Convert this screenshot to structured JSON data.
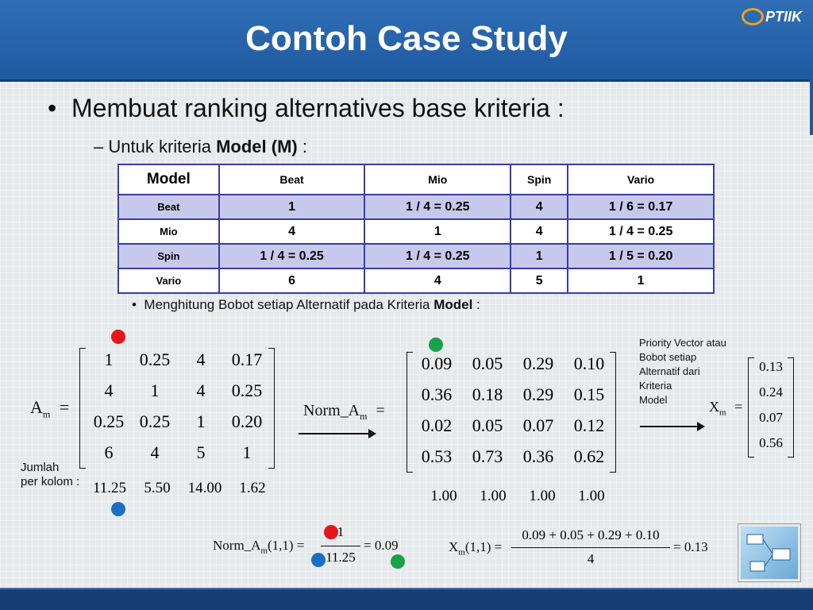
{
  "slide": {
    "title": "Contoh Case Study",
    "logo_text": "PTIIK"
  },
  "bullets": {
    "level1": "Membuat ranking alternatives base kriteria :",
    "level2_prefix": "Untuk kriteria ",
    "level2_bold": "Model (M)",
    "level2_suffix": " :",
    "level3_prefix": "Menghitung Bobot setiap Alternatif pada Kriteria ",
    "level3_bold": "Model",
    "level3_suffix": " :"
  },
  "table": {
    "headers": [
      "Model",
      "Beat",
      "Mio",
      "Spin",
      "Vario"
    ],
    "rows": [
      {
        "label": "Beat",
        "cells": [
          "1",
          "1 / 4 = 0.25",
          "4",
          "1 / 6 = 0.17"
        ]
      },
      {
        "label": "Mio",
        "cells": [
          "4",
          "1",
          "4",
          "1 / 4 = 0.25"
        ]
      },
      {
        "label": "Spin",
        "cells": [
          "1 / 4 = 0.25",
          "1 / 4 = 0.25",
          "1",
          "1 / 5 = 0.20"
        ]
      },
      {
        "label": "Vario",
        "cells": [
          "6",
          "4",
          "5",
          "1"
        ]
      }
    ]
  },
  "matrix_a": {
    "label": "A",
    "subscript": "m",
    "eq": "=",
    "rows": [
      [
        "1",
        "0.25",
        "4",
        "0.17"
      ],
      [
        "4",
        "1",
        "4",
        "0.25"
      ],
      [
        "0.25",
        "0.25",
        "1",
        "0.20"
      ],
      [
        "6",
        "4",
        "5",
        "1"
      ]
    ],
    "sum_label_1": "Jumlah",
    "sum_label_2": "per kolom :",
    "sums": [
      "11.25",
      "5.50",
      "14.00",
      "1.62"
    ]
  },
  "matrix_norm": {
    "label": "Norm_A",
    "subscript": "m",
    "eq": "=",
    "rows": [
      [
        "0.09",
        "0.05",
        "0.29",
        "0.10"
      ],
      [
        "0.36",
        "0.18",
        "0.29",
        "0.15"
      ],
      [
        "0.02",
        "0.05",
        "0.07",
        "0.12"
      ],
      [
        "0.53",
        "0.73",
        "0.36",
        "0.62"
      ]
    ],
    "sums": [
      "1.00",
      "1.00",
      "1.00",
      "1.00"
    ]
  },
  "priority_vector": {
    "caption": [
      "Priority Vector  atau",
      "Bobot setiap",
      "Alternatif dari",
      "Kriteria",
      "Model"
    ],
    "label": "X",
    "subscript": "m",
    "eq": "=",
    "values": [
      "0.13",
      "0.24",
      "0.07",
      "0.56"
    ]
  },
  "formula_norm": {
    "lhs": "Norm_A",
    "sub": "m",
    "args": "(1,1) =",
    "num": "1",
    "den": "11.25",
    "result": "= 0.09"
  },
  "formula_x": {
    "lhs": "X",
    "sub": "m",
    "args": "(1,1) =",
    "num": "0.09 + 0.05 + 0.29 + 0.10",
    "den": "4",
    "result": "= 0.13"
  },
  "colors": {
    "red_marker": "#e8141b",
    "blue_marker": "#1a6fc4",
    "green_marker": "#16a34a",
    "header_blue": "#1f5aa0",
    "table_border": "#3b3ba8",
    "table_alt_row": "#c7c9ec"
  },
  "icons": {
    "thumbnail": "diagram-thumbnail-icon"
  }
}
